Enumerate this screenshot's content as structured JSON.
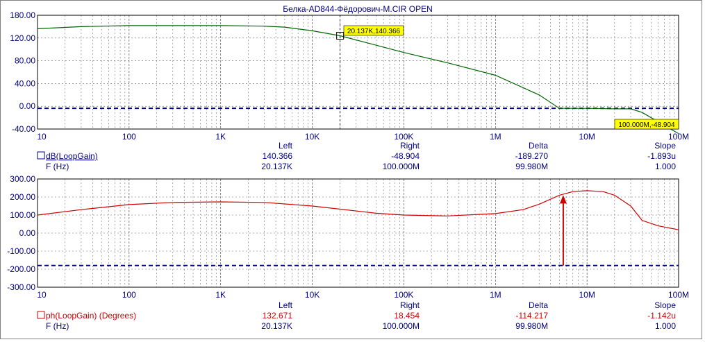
{
  "title": "Белка-AD844-Фёдорович-M.CIR OPEN",
  "x_tick_labels": [
    "10",
    "100",
    "1K",
    "10K",
    "100K",
    "1M",
    "10M",
    "100M"
  ],
  "colors": {
    "gain_trace": "#006400",
    "phase_trace": "#cc0000",
    "ref_line": "#000080",
    "grid": "#000000",
    "cursor_label_bg": "#ffff00"
  },
  "chart_data": [
    {
      "type": "line",
      "x_scale": "log",
      "xlim": [
        10,
        100000000
      ],
      "ylim": [
        -40,
        180
      ],
      "y_tick_labels": [
        "180.00",
        "120.00",
        "80.00",
        "40.00",
        "0.00",
        "-40.00"
      ],
      "grid": true,
      "series": [
        {
          "name": "dB(LoopGain)",
          "x": [
            10,
            30,
            100,
            300,
            1000,
            3000,
            5000,
            10000,
            20137,
            50000,
            100000,
            300000,
            1000000,
            3000000,
            5000000,
            10000000,
            20000000,
            30000000,
            40000000,
            100000000
          ],
          "values": [
            154,
            158,
            160,
            160,
            160,
            159,
            157,
            150,
            140.366,
            122,
            108,
            88,
            64,
            26,
            0,
            0,
            -1,
            -1,
            -8,
            -48.904
          ]
        }
      ],
      "reference_line": 0,
      "cursor_labels": [
        "20.137K,140.366",
        "100.000M,-48.904"
      ],
      "readout": {
        "headers": [
          "Left",
          "Right",
          "Delta",
          "Slope"
        ],
        "rows": [
          {
            "label": "dB(LoopGain)",
            "values": [
              "140.366",
              "-48.904",
              "-189.270",
              "-1.893u"
            ]
          },
          {
            "label": "F (Hz)",
            "values": [
              "20.137K",
              "100.000M",
              "99.980M",
              "1.000"
            ]
          }
        ]
      }
    },
    {
      "type": "line",
      "x_scale": "log",
      "xlim": [
        10,
        100000000
      ],
      "ylim": [
        -300,
        300
      ],
      "y_tick_labels": [
        "300.00",
        "200.00",
        "100.00",
        "0.00",
        "-100.00",
        "-200.00",
        "-300.00"
      ],
      "grid": true,
      "series": [
        {
          "name": "ph(LoopGain) (Degrees)",
          "x": [
            10,
            30,
            100,
            300,
            1000,
            3000,
            10000,
            20137,
            50000,
            100000,
            300000,
            1000000,
            2000000,
            3000000,
            5000000,
            7000000,
            10000000,
            15000000,
            20000000,
            30000000,
            40000000,
            60000000,
            100000000
          ],
          "values": [
            100,
            130,
            158,
            170,
            173,
            170,
            150,
            132.671,
            110,
            100,
            95,
            108,
            130,
            160,
            210,
            230,
            235,
            230,
            210,
            150,
            70,
            40,
            18.454
          ]
        }
      ],
      "reference_line": -180,
      "arrow": {
        "x": 5500000,
        "from": -180,
        "to": 210
      },
      "readout": {
        "headers": [
          "Left",
          "Right",
          "Delta",
          "Slope"
        ],
        "rows": [
          {
            "label": "ph(LoopGain) (Degrees)",
            "values": [
              "132.671",
              "18.454",
              "-114.217",
              "-1.142u"
            ]
          },
          {
            "label": "F (Hz)",
            "values": [
              "20.137K",
              "100.000M",
              "99.980M",
              "1.000"
            ]
          }
        ]
      }
    }
  ]
}
